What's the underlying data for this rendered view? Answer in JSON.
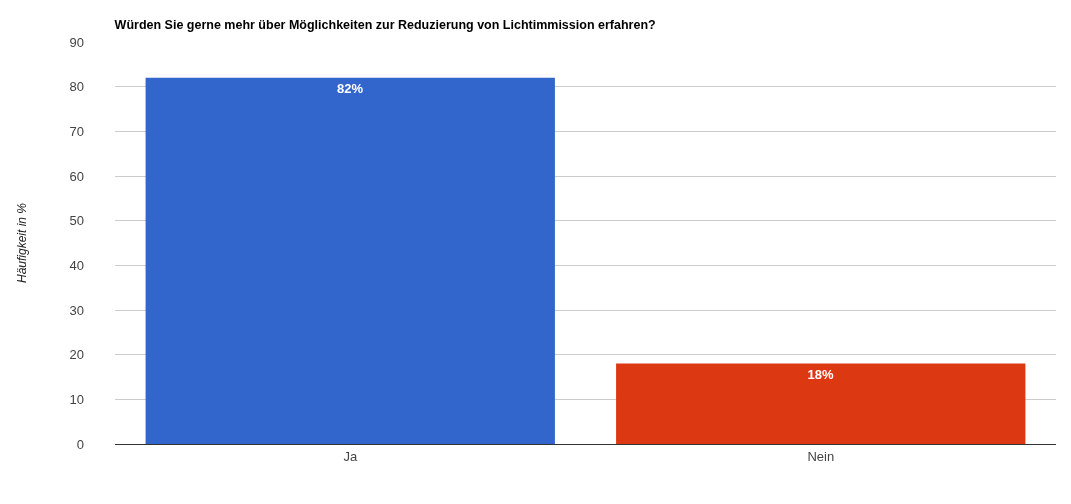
{
  "chart_data": {
    "type": "bar",
    "title": "Würden Sie gerne mehr über Möglichkeiten zur Reduzierung von Lichtimmission erfahren?",
    "ylabel": "Häufigkeit in %",
    "categories": [
      "Ja",
      "Nein"
    ],
    "values": [
      82,
      18
    ],
    "colors": [
      "#3366cc",
      "#dc3912"
    ],
    "value_labels": [
      "82%",
      "18%"
    ],
    "ylim": [
      0,
      90
    ],
    "yticks": [
      0,
      10,
      20,
      30,
      40,
      50,
      60,
      70,
      80,
      90
    ],
    "grid": "y"
  }
}
